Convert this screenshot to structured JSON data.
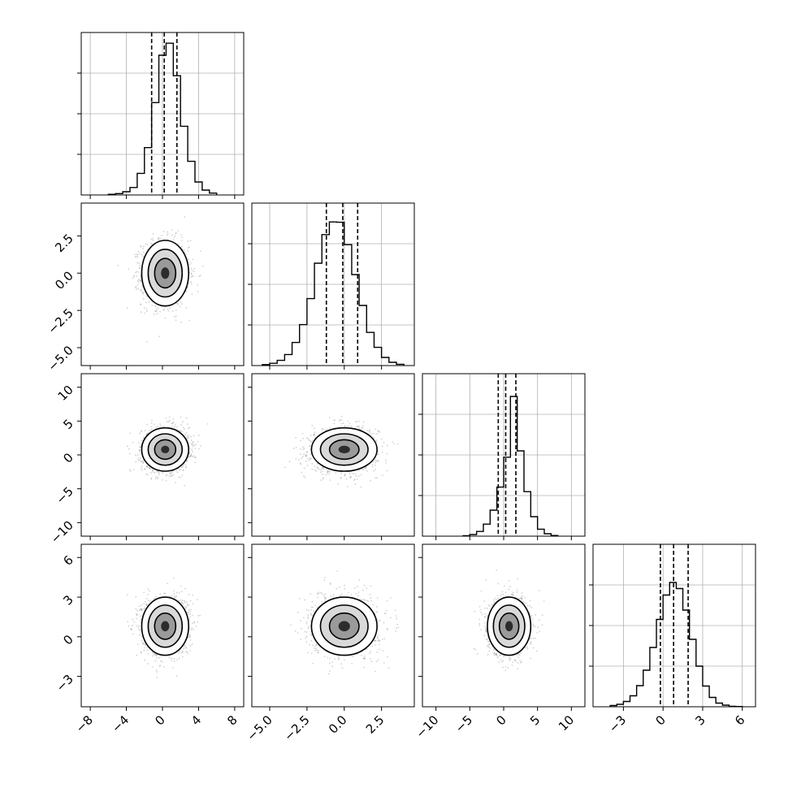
{
  "figure": {
    "type": "corner_plot",
    "grid": true,
    "colors": {
      "contour": "#000000",
      "scatter": "#7f7f7f",
      "grid": "#b0b0b0",
      "hist": "#000000"
    }
  },
  "params": [
    {
      "range": [
        -9,
        9
      ],
      "ticks": [
        -8,
        -4,
        0,
        4,
        8
      ],
      "labels": [
        "−8",
        "−4",
        "0",
        "4",
        "8"
      ],
      "mu": 0.3,
      "sigma": 1.3,
      "quantiles": [
        -1.2,
        0.2,
        1.6
      ]
    },
    {
      "range": [
        -6.2,
        4.7
      ],
      "ticks": [
        -5,
        -2.5,
        0,
        2.5
      ],
      "labels": [
        "−5.0",
        "−2.5",
        "0.0",
        "2.5"
      ],
      "mu": 0.0,
      "sigma": 1.1,
      "quantiles": [
        -1.2,
        -0.1,
        0.9
      ]
    },
    {
      "range": [
        -12,
        12
      ],
      "ticks": [
        -10,
        -5,
        0,
        5,
        10
      ],
      "labels": [
        "−10",
        "−5",
        "0",
        "5",
        "10"
      ],
      "mu": 0.8,
      "sigma": 1.6,
      "quantiles": [
        -0.8,
        0.3,
        1.8
      ]
    },
    {
      "range": [
        -5.3,
        7
      ],
      "ticks": [
        -3,
        0,
        3,
        6
      ],
      "labels": [
        "−3",
        "0",
        "3",
        "6"
      ],
      "mu": 0.8,
      "sigma": 1.1,
      "quantiles": [
        -0.2,
        0.8,
        1.9
      ]
    }
  ],
  "chart_data": [
    {
      "type": "histogram",
      "param": 0,
      "bins": [
        -6,
        -5.2,
        -4.4,
        -3.6,
        -2.8,
        -2,
        -1.2,
        -0.4,
        0.4,
        1.2,
        2,
        2.8,
        3.6,
        4.4,
        5.2,
        6
      ],
      "counts": [
        0.3,
        0.6,
        1.4,
        3.2,
        9.3,
        20.4,
        39.8,
        60.2,
        65.4,
        51.4,
        29.6,
        14.5,
        5.6,
        2.1,
        0.8
      ],
      "ylim": [
        0,
        70
      ],
      "quantiles": [
        -1.2,
        0.2,
        1.6
      ]
    },
    {
      "type": "histogram",
      "param": 1,
      "bins": [
        -5.5,
        -5,
        -4.5,
        -4,
        -3.5,
        -3,
        -2.5,
        -2,
        -1.5,
        -1,
        -0.5,
        0,
        0.5,
        1,
        1.5,
        2,
        2.5,
        3,
        3.5,
        4
      ],
      "counts": [
        0.3,
        0.7,
        1.6,
        3.4,
        7.1,
        12.6,
        20.6,
        31.5,
        40.3,
        44.2,
        44.1,
        37.2,
        28.0,
        18.5,
        10.2,
        5.6,
        2.5,
        1.0,
        0.4
      ],
      "ylim": [
        0,
        50
      ],
      "quantiles": [
        -1.2,
        -0.1,
        0.9
      ]
    },
    {
      "type": "histogram",
      "param": 2,
      "bins": [
        -6,
        -5,
        -4,
        -3,
        -2,
        -1,
        0,
        1,
        2,
        3,
        4,
        5,
        6,
        7,
        8
      ],
      "counts": [
        0.3,
        1.0,
        2.9,
        7.4,
        16.0,
        30.2,
        48.6,
        86.0,
        52.5,
        27.4,
        12.0,
        4.3,
        1.5,
        0.4
      ],
      "ylim": [
        0,
        100
      ],
      "quantiles": [
        -0.8,
        0.3,
        1.8
      ]
    },
    {
      "type": "histogram",
      "param": 3,
      "bins": [
        -4,
        -3.5,
        -3,
        -2.5,
        -2,
        -1.5,
        -1,
        -0.5,
        0,
        0.5,
        1,
        1.5,
        2,
        2.5,
        3,
        3.5,
        4,
        4.5,
        5,
        5.5,
        6
      ],
      "counts": [
        0.3,
        0.6,
        1.3,
        2.7,
        5.2,
        9.0,
        14.6,
        21.5,
        27.5,
        30.6,
        29.1,
        23.8,
        16.6,
        10.0,
        5.1,
        2.3,
        0.9,
        0.4,
        0.1,
        0.05
      ],
      "ylim": [
        0,
        40
      ],
      "quantiles": [
        -0.2,
        0.8,
        1.9
      ]
    },
    {
      "type": "scatter_contour",
      "x_param": 0,
      "y_param": 1,
      "rho": 0.0
    },
    {
      "type": "scatter_contour",
      "x_param": 0,
      "y_param": 2,
      "rho": 0.05
    },
    {
      "type": "scatter_contour",
      "x_param": 1,
      "y_param": 2,
      "rho": 0.05
    },
    {
      "type": "scatter_contour",
      "x_param": 0,
      "y_param": 3,
      "rho": 0.0
    },
    {
      "type": "scatter_contour",
      "x_param": 1,
      "y_param": 3,
      "rho": 0.0
    },
    {
      "type": "scatter_contour",
      "x_param": 2,
      "y_param": 3,
      "rho": 0.0
    }
  ]
}
